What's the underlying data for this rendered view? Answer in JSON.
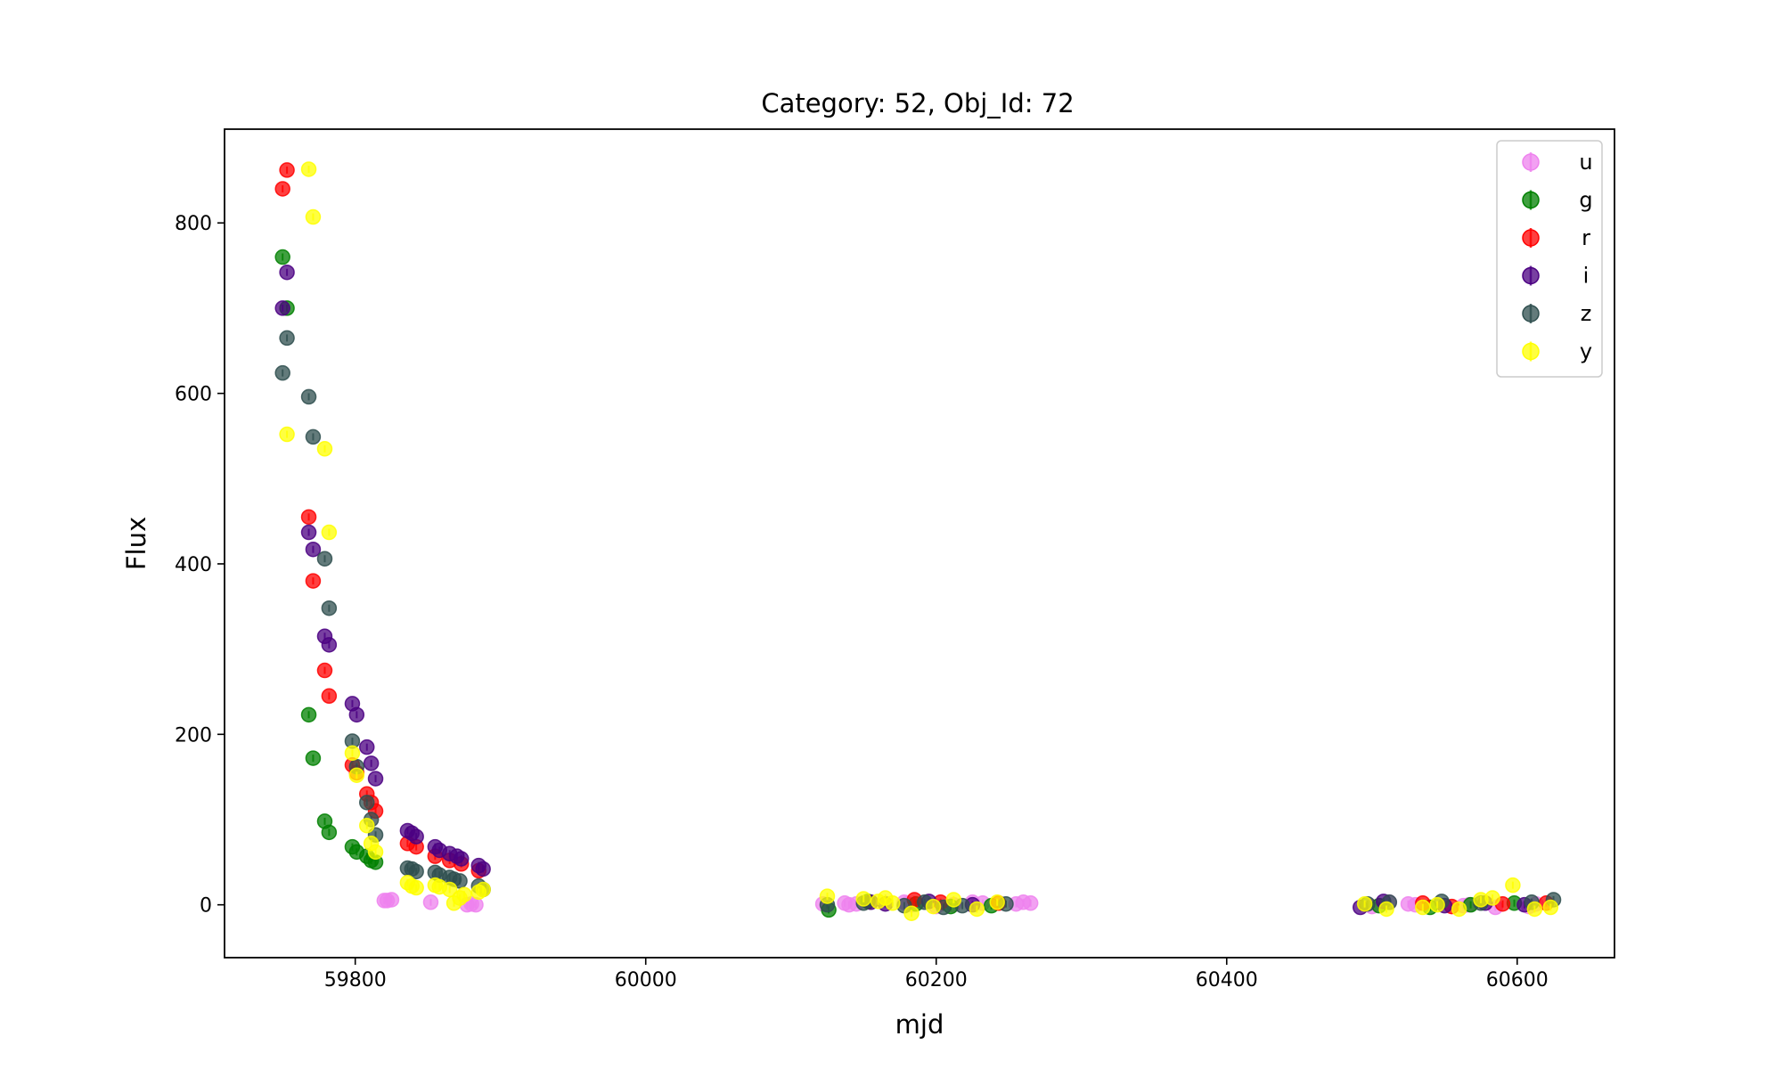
{
  "chart_data": {
    "type": "scatter",
    "title": "Category: 52, Obj_Id: 72",
    "xlabel": "mjd",
    "ylabel": "Flux",
    "xlim": [
      59710,
      60667
    ],
    "ylim": [
      -62,
      910
    ],
    "xticks": [
      59800,
      60000,
      60200,
      60400,
      60600
    ],
    "yticks": [
      0,
      200,
      400,
      600,
      800
    ],
    "grid": false,
    "legend_position": "top-right",
    "series": [
      {
        "name": "u",
        "color": "#ee82ee",
        "points": [
          [
            59820,
            5
          ],
          [
            59822,
            5
          ],
          [
            59825,
            6
          ],
          [
            59852,
            3
          ],
          [
            59877,
            0
          ],
          [
            59880,
            1
          ],
          [
            59883,
            0
          ],
          [
            60122,
            1
          ],
          [
            60137,
            2
          ],
          [
            60140,
            0
          ],
          [
            60145,
            1
          ],
          [
            60178,
            3
          ],
          [
            60180,
            1
          ],
          [
            60183,
            0
          ],
          [
            60200,
            -2
          ],
          [
            60212,
            0
          ],
          [
            60225,
            3
          ],
          [
            60232,
            2
          ],
          [
            60255,
            1
          ],
          [
            60260,
            3
          ],
          [
            60265,
            2
          ],
          [
            60500,
            -2
          ],
          [
            60512,
            3
          ],
          [
            60525,
            1
          ],
          [
            60530,
            0
          ],
          [
            60563,
            -1
          ],
          [
            60567,
            0
          ],
          [
            60585,
            -3
          ],
          [
            60608,
            -2
          ],
          [
            60613,
            1
          ]
        ]
      },
      {
        "name": "g",
        "color": "#008000",
        "points": [
          [
            59750,
            760
          ],
          [
            59753,
            700
          ],
          [
            59768,
            223
          ],
          [
            59771,
            172
          ],
          [
            59779,
            98
          ],
          [
            59782,
            85
          ],
          [
            59798,
            68
          ],
          [
            59801,
            62
          ],
          [
            59808,
            57
          ],
          [
            59811,
            52
          ],
          [
            59814,
            50
          ],
          [
            60126,
            -6
          ],
          [
            60153,
            4
          ],
          [
            60186,
            1
          ],
          [
            60210,
            -2
          ],
          [
            60238,
            -1
          ],
          [
            60505,
            -1
          ],
          [
            60540,
            -3
          ],
          [
            60568,
            0
          ],
          [
            60598,
            2
          ]
        ]
      },
      {
        "name": "r",
        "color": "#ff0000",
        "points": [
          [
            59750,
            840
          ],
          [
            59753,
            862
          ],
          [
            59768,
            455
          ],
          [
            59771,
            380
          ],
          [
            59779,
            275
          ],
          [
            59782,
            245
          ],
          [
            59798,
            164
          ],
          [
            59801,
            155
          ],
          [
            59808,
            130
          ],
          [
            59811,
            120
          ],
          [
            59814,
            110
          ],
          [
            59836,
            72
          ],
          [
            59842,
            68
          ],
          [
            59855,
            57
          ],
          [
            59865,
            52
          ],
          [
            59873,
            48
          ],
          [
            59885,
            40
          ],
          [
            60185,
            6
          ],
          [
            60203,
            3
          ],
          [
            60243,
            2
          ],
          [
            60535,
            2
          ],
          [
            60555,
            -2
          ],
          [
            60590,
            1
          ],
          [
            60620,
            2
          ]
        ]
      },
      {
        "name": "i",
        "color": "#4b0082",
        "points": [
          [
            59750,
            700
          ],
          [
            59753,
            742
          ],
          [
            59768,
            437
          ],
          [
            59771,
            417
          ],
          [
            59779,
            315
          ],
          [
            59782,
            305
          ],
          [
            59798,
            236
          ],
          [
            59801,
            223
          ],
          [
            59808,
            185
          ],
          [
            59811,
            166
          ],
          [
            59814,
            148
          ],
          [
            59836,
            87
          ],
          [
            59839,
            84
          ],
          [
            59842,
            80
          ],
          [
            59855,
            68
          ],
          [
            59858,
            64
          ],
          [
            59865,
            60
          ],
          [
            59870,
            57
          ],
          [
            59873,
            54
          ],
          [
            59885,
            46
          ],
          [
            59888,
            42
          ],
          [
            60155,
            3
          ],
          [
            60165,
            1
          ],
          [
            60195,
            4
          ],
          [
            60225,
            0
          ],
          [
            60492,
            -3
          ],
          [
            60508,
            4
          ],
          [
            60550,
            -1
          ],
          [
            60578,
            2
          ],
          [
            60605,
            0
          ]
        ]
      },
      {
        "name": "z",
        "color": "#2f4f4f",
        "points": [
          [
            59750,
            624
          ],
          [
            59753,
            665
          ],
          [
            59768,
            596
          ],
          [
            59771,
            549
          ],
          [
            59779,
            406
          ],
          [
            59782,
            348
          ],
          [
            59798,
            192
          ],
          [
            59801,
            162
          ],
          [
            59808,
            120
          ],
          [
            59811,
            100
          ],
          [
            59814,
            82
          ],
          [
            59836,
            43
          ],
          [
            59839,
            42
          ],
          [
            59842,
            39
          ],
          [
            59855,
            38
          ],
          [
            59858,
            35
          ],
          [
            59865,
            32
          ],
          [
            59868,
            30
          ],
          [
            59872,
            28
          ],
          [
            59885,
            22
          ],
          [
            59888,
            18
          ],
          [
            60125,
            0
          ],
          [
            60150,
            2
          ],
          [
            60178,
            -1
          ],
          [
            60192,
            3
          ],
          [
            60205,
            -3
          ],
          [
            60218,
            -1
          ],
          [
            60248,
            1
          ],
          [
            60497,
            1
          ],
          [
            60512,
            3
          ],
          [
            60548,
            4
          ],
          [
            60575,
            2
          ],
          [
            60610,
            3
          ],
          [
            60625,
            6
          ]
        ]
      },
      {
        "name": "y",
        "color": "#ffff00",
        "points": [
          [
            59768,
            863
          ],
          [
            59771,
            807
          ],
          [
            59753,
            552
          ],
          [
            59779,
            535
          ],
          [
            59782,
            437
          ],
          [
            59798,
            178
          ],
          [
            59801,
            152
          ],
          [
            59808,
            93
          ],
          [
            59811,
            72
          ],
          [
            59814,
            62
          ],
          [
            59836,
            26
          ],
          [
            59839,
            22
          ],
          [
            59842,
            20
          ],
          [
            59855,
            23
          ],
          [
            59858,
            21
          ],
          [
            59865,
            18
          ],
          [
            59868,
            2
          ],
          [
            59872,
            8
          ],
          [
            59875,
            12
          ],
          [
            59885,
            15
          ],
          [
            59888,
            18
          ],
          [
            60125,
            10
          ],
          [
            60150,
            7
          ],
          [
            60160,
            4
          ],
          [
            60165,
            8
          ],
          [
            60170,
            2
          ],
          [
            60183,
            -10
          ],
          [
            60198,
            -2
          ],
          [
            60212,
            6
          ],
          [
            60228,
            -5
          ],
          [
            60242,
            3
          ],
          [
            60495,
            1
          ],
          [
            60510,
            -5
          ],
          [
            60535,
            -3
          ],
          [
            60545,
            0
          ],
          [
            60560,
            -5
          ],
          [
            60575,
            6
          ],
          [
            60583,
            8
          ],
          [
            60597,
            23
          ],
          [
            60612,
            -5
          ],
          [
            60623,
            -3
          ]
        ]
      }
    ]
  }
}
